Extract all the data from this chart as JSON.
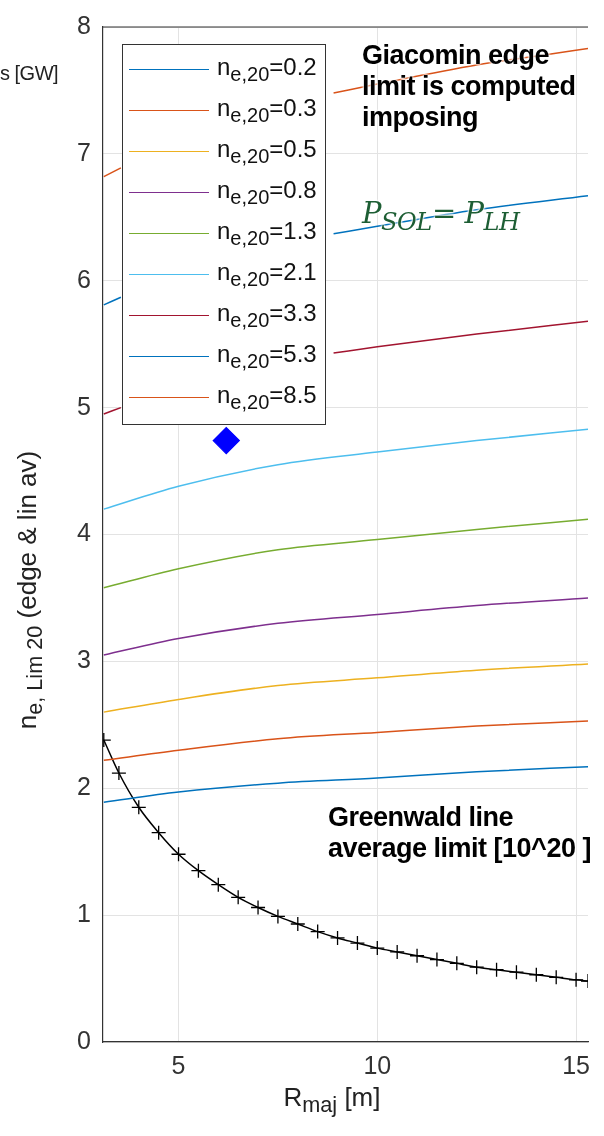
{
  "chart_data": {
    "type": "line",
    "xlabel": "R$_{maj}$ [m]",
    "ylabel": "n$_{e, Lim 20}$ (edge & lin av)",
    "x": [
      3.12,
      5,
      7.5,
      10,
      12.5,
      15.3
    ],
    "xlim": [
      3.1,
      15.3
    ],
    "xticks": [
      5,
      10,
      15
    ],
    "ylim": [
      0,
      8
    ],
    "yticks": [
      0,
      1,
      2,
      3,
      4,
      5,
      6,
      7,
      8
    ],
    "grid": true,
    "legend": "top left",
    "annotations": [
      "Giacomin edge limit is computed imposing",
      "P$_{SOL}$= P$_{LH}$",
      "Greenwald line average limit [10^20 ]",
      "s [GW]"
    ],
    "series": [
      {
        "name": "n$_{e,20}$=0.2",
        "color": "#0072bd",
        "marker": "none",
        "values": [
          1.89,
          1.97,
          2.04,
          2.08,
          2.13,
          2.17
        ]
      },
      {
        "name": "n$_{e,20}$=0.3",
        "color": "#d95319",
        "marker": "none",
        "values": [
          2.22,
          2.3,
          2.39,
          2.44,
          2.49,
          2.53
        ]
      },
      {
        "name": "n$_{e,20}$=0.5",
        "color": "#edb120",
        "marker": "none",
        "values": [
          2.6,
          2.7,
          2.81,
          2.87,
          2.93,
          2.98
        ]
      },
      {
        "name": "n$_{e,20}$=0.8",
        "color": "#7e2f8e",
        "marker": "none",
        "values": [
          3.05,
          3.18,
          3.3,
          3.37,
          3.44,
          3.5
        ]
      },
      {
        "name": "n$_{e,20}$=1.3",
        "color": "#77ac30",
        "marker": "none",
        "values": [
          3.58,
          3.73,
          3.88,
          3.96,
          4.04,
          4.12
        ]
      },
      {
        "name": "n$_{e,20}$=2.1",
        "color": "#4dbeee",
        "marker": "none",
        "values": [
          4.2,
          4.38,
          4.55,
          4.65,
          4.74,
          4.83
        ]
      },
      {
        "name": "n$_{e,20}$=3.3",
        "color": "#a2142f",
        "marker": "none",
        "x": [
          3.12,
          3.55,
          6,
          8.9,
          10,
          12.5,
          15.3
        ],
        "values": [
          4.95,
          5.0,
          null,
          5.43,
          5.48,
          5.58,
          5.68
        ]
      },
      {
        "name": "n$_{e,20}$=5.3",
        "color": "#0072bd",
        "marker": "none",
        "x": [
          3.12,
          3.55,
          6,
          8.9,
          10,
          12.5,
          15.3
        ],
        "values": [
          5.81,
          5.87,
          null,
          6.37,
          6.43,
          6.56,
          6.67
        ]
      },
      {
        "name": "n$_{e,20}$=8.5",
        "color": "#d95319",
        "marker": "none",
        "x": [
          3.12,
          3.55,
          6,
          8.9,
          10,
          12.5,
          15.3
        ],
        "values": [
          6.82,
          6.89,
          null,
          7.48,
          7.55,
          7.7,
          7.83
        ]
      },
      {
        "type": "line",
        "color": "#000000",
        "marker": "cross",
        "x": [
          3.12,
          3.5,
          4,
          4.5,
          5,
          5.5,
          6,
          6.5,
          7,
          7.5,
          8,
          8.5,
          9,
          9.5,
          10,
          10.5,
          11,
          11.5,
          12,
          12.5,
          13,
          13.5,
          14,
          14.5,
          15,
          15.3
        ],
        "values": [
          2.38,
          2.12,
          1.85,
          1.65,
          1.48,
          1.35,
          1.24,
          1.14,
          1.06,
          0.99,
          0.93,
          0.87,
          0.82,
          0.78,
          0.74,
          0.71,
          0.68,
          0.65,
          0.62,
          0.59,
          0.57,
          0.55,
          0.53,
          0.51,
          0.49,
          0.48
        ]
      },
      {
        "type": "scatter",
        "color": "#0000ff",
        "marker": "diamond",
        "x": [
          6.2
        ],
        "values": [
          4.74
        ]
      }
    ]
  }
}
